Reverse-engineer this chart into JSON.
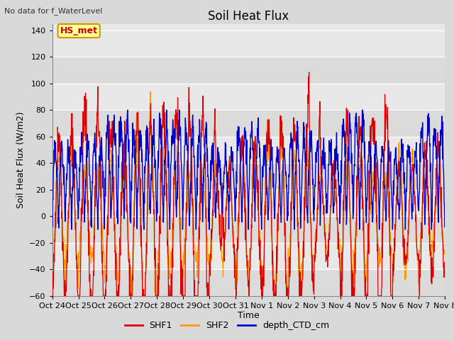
{
  "title": "Soil Heat Flux",
  "subtitle": "No data for f_WaterLevel",
  "ylabel": "Soil Heat Flux (W/m2)",
  "xlabel": "Time",
  "ylim": [
    -60,
    145
  ],
  "yticks": [
    -60,
    -40,
    -20,
    0,
    20,
    40,
    60,
    80,
    100,
    120,
    140
  ],
  "xtick_labels": [
    "Oct 24",
    "Oct 25",
    "Oct 26",
    "Oct 27",
    "Oct 28",
    "Oct 29",
    "Oct 30",
    "Oct 31",
    "Nov 1",
    "Nov 2",
    "Nov 3",
    "Nov 4",
    "Nov 5",
    "Nov 6",
    "Nov 7",
    "Nov 8"
  ],
  "annotation_text": "HS_met",
  "annotation_color": "#cc0000",
  "annotation_bg": "#ffff99",
  "annotation_border": "#cc9900",
  "shf1_color": "#dd0000",
  "shf2_color": "#ff9900",
  "depth_color": "#0000cc",
  "legend_labels": [
    "SHF1",
    "SHF2",
    "depth_CTD_cm"
  ],
  "bg_color": "#d9d9d9",
  "plot_bg": "#e8e8e8",
  "grid_color": "#ffffff",
  "seed": 42,
  "figwidth": 6.4,
  "figheight": 4.8,
  "dpi": 100
}
